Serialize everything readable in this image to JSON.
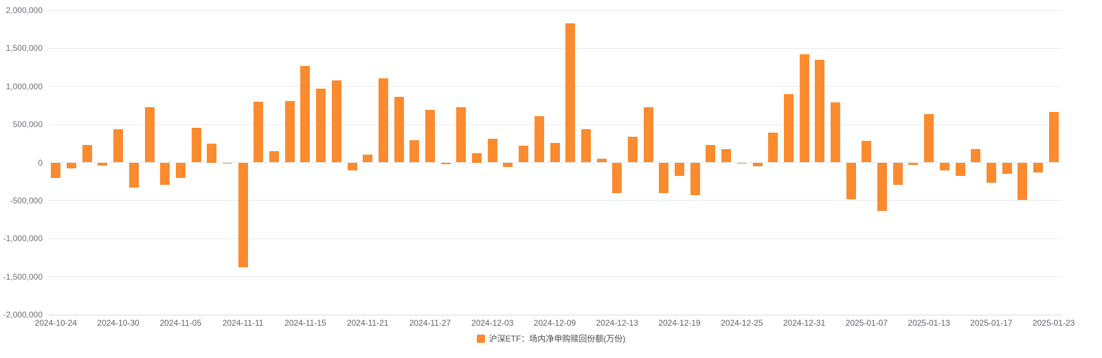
{
  "chart": {
    "colors": {
      "bar": "#fb8b2e",
      "grid_line": "#e9ebef",
      "axis_text": "#6e7079",
      "x_axis_text": "#5f6369",
      "background": "#ffffff"
    }
  },
  "chart_data": {
    "type": "bar",
    "title": "",
    "series_name": "沪深ETF：场内净申购赎回份额(万份)",
    "legend_position": "bottom",
    "grid": true,
    "ylim": [
      -2000000,
      2000000
    ],
    "y_tick_labels": [
      "2,000,000",
      "1,500,000",
      "1,000,000",
      "500,000",
      "0",
      "-500,000",
      "-1,000,000",
      "-1,500,000",
      "-2,000,000"
    ],
    "x_label_interval": 4,
    "x_tick_labels_shown": [
      "2024-10-24",
      "2024-10-30",
      "2024-11-05",
      "2024-11-11",
      "2024-11-15",
      "2024-11-21",
      "2024-11-27",
      "2024-12-03",
      "2024-12-09",
      "2024-12-13",
      "2024-12-19",
      "2024-12-25",
      "2024-12-31",
      "2025-01-07",
      "2025-01-13",
      "2025-01-17",
      "2025-01-23"
    ],
    "x": [
      "2024-10-24",
      "2024-10-25",
      "2024-10-28",
      "2024-10-29",
      "2024-10-30",
      "2024-10-31",
      "2024-11-01",
      "2024-11-04",
      "2024-11-05",
      "2024-11-06",
      "2024-11-07",
      "2024-11-08",
      "2024-11-11",
      "2024-11-12",
      "2024-11-13",
      "2024-11-14",
      "2024-11-15",
      "2024-11-18",
      "2024-11-19",
      "2024-11-20",
      "2024-11-21",
      "2024-11-22",
      "2024-11-25",
      "2024-11-26",
      "2024-11-27",
      "2024-11-28",
      "2024-11-29",
      "2024-12-02",
      "2024-12-03",
      "2024-12-04",
      "2024-12-05",
      "2024-12-06",
      "2024-12-09",
      "2024-12-10",
      "2024-12-11",
      "2024-12-12",
      "2024-12-13",
      "2024-12-16",
      "2024-12-17",
      "2024-12-18",
      "2024-12-19",
      "2024-12-20",
      "2024-12-23",
      "2024-12-24",
      "2024-12-25",
      "2024-12-26",
      "2024-12-27",
      "2024-12-30",
      "2024-12-31",
      "2025-01-02",
      "2025-01-03",
      "2025-01-06",
      "2025-01-07",
      "2025-01-08",
      "2025-01-09",
      "2025-01-10",
      "2025-01-13",
      "2025-01-14",
      "2025-01-15",
      "2025-01-16",
      "2025-01-17",
      "2025-01-20",
      "2025-01-21",
      "2025-01-22",
      "2025-01-23"
    ],
    "values": [
      -200000,
      -80000,
      230000,
      -40000,
      440000,
      -330000,
      730000,
      -290000,
      -200000,
      460000,
      250000,
      -15000,
      -1380000,
      800000,
      150000,
      810000,
      1270000,
      975000,
      1080000,
      -100000,
      105000,
      1110000,
      865000,
      290000,
      690000,
      -20000,
      730000,
      125000,
      310000,
      -55000,
      220000,
      610000,
      260000,
      1830000,
      440000,
      50000,
      -400000,
      340000,
      730000,
      -400000,
      -180000,
      -430000,
      230000,
      180000,
      -10000,
      -50000,
      390000,
      900000,
      1420000,
      1350000,
      790000,
      -480000,
      280000,
      -640000,
      -290000,
      -30000,
      640000,
      -100000,
      -180000,
      180000,
      -270000,
      -150000,
      -490000,
      -130000,
      660000
    ]
  }
}
